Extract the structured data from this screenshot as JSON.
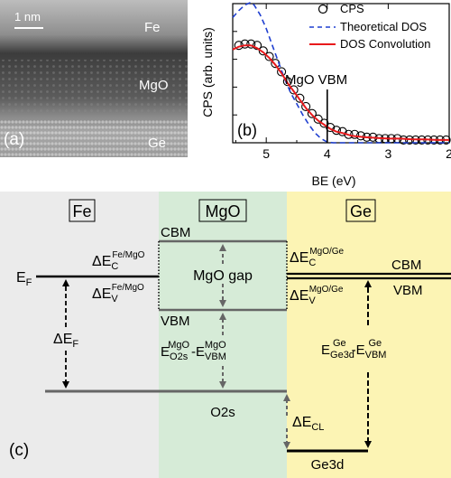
{
  "panel_a": {
    "scale_bar": "1 nm",
    "label_fe": "Fe",
    "label_mgo": "MgO",
    "label_ge": "Ge",
    "panel_tag": "(a)"
  },
  "chart_data": {
    "type": "line",
    "panel_tag": "(b)",
    "xlabel": "BE (eV)",
    "ylabel": "CPS (arb. units)",
    "xlim": [
      5.55,
      2.0
    ],
    "x_reversed": true,
    "xticks": [
      "5",
      "4",
      "3",
      "2"
    ],
    "annotation": "MgO VBM",
    "annotation_x": 4.0,
    "legend_position": "top-right",
    "grid": false,
    "series": [
      {
        "name": "CPS",
        "style": "open-circles",
        "x": [
          5.45,
          5.35,
          5.25,
          5.15,
          5.05,
          4.95,
          4.85,
          4.75,
          4.65,
          4.55,
          4.45,
          4.35,
          4.25,
          4.15,
          4.05,
          3.95,
          3.85,
          3.75,
          3.65,
          3.55,
          3.45,
          3.35,
          3.25,
          3.15,
          3.05,
          2.95,
          2.85,
          2.75,
          2.65,
          2.55,
          2.45,
          2.35,
          2.25,
          2.15,
          2.05
        ],
        "y": [
          0.7,
          0.71,
          0.71,
          0.7,
          0.66,
          0.62,
          0.57,
          0.51,
          0.44,
          0.38,
          0.32,
          0.26,
          0.21,
          0.17,
          0.14,
          0.11,
          0.09,
          0.08,
          0.06,
          0.06,
          0.05,
          0.04,
          0.04,
          0.03,
          0.03,
          0.03,
          0.03,
          0.02,
          0.02,
          0.02,
          0.02,
          0.02,
          0.02,
          0.02,
          0.02
        ]
      },
      {
        "name": "Theoretical DOS",
        "style": "dashed",
        "color": "#1f3fd0",
        "x": [
          5.55,
          5.45,
          5.35,
          5.25,
          5.2,
          5.1,
          5.0,
          4.9,
          4.8,
          4.7,
          4.6,
          4.5,
          4.4,
          4.3,
          4.2,
          4.1,
          4.0,
          3.9,
          3.5,
          3.0,
          2.0
        ],
        "y": [
          0.9,
          0.95,
          0.99,
          1.01,
          0.99,
          0.92,
          0.82,
          0.7,
          0.58,
          0.46,
          0.36,
          0.28,
          0.2,
          0.13,
          0.07,
          0.03,
          0.005,
          0.0,
          0.0,
          0.0,
          0.0
        ]
      },
      {
        "name": "DOS Convolution",
        "style": "solid",
        "color": "#e8191c",
        "x": [
          5.55,
          5.45,
          5.35,
          5.25,
          5.15,
          5.05,
          4.95,
          4.85,
          4.75,
          4.65,
          4.55,
          4.45,
          4.35,
          4.25,
          4.15,
          4.05,
          3.95,
          3.85,
          3.75,
          3.6,
          3.4,
          3.2,
          3.0,
          2.8,
          2.6,
          2.4,
          2.2,
          2.0
        ],
        "y": [
          0.67,
          0.69,
          0.7,
          0.7,
          0.68,
          0.65,
          0.61,
          0.56,
          0.5,
          0.43,
          0.37,
          0.31,
          0.25,
          0.2,
          0.16,
          0.13,
          0.1,
          0.08,
          0.07,
          0.05,
          0.04,
          0.035,
          0.03,
          0.03,
          0.025,
          0.025,
          0.02,
          0.02
        ]
      }
    ]
  },
  "panel_c": {
    "panel_tag": "(c)",
    "header_fe": "Fe",
    "header_mgo": "MgO",
    "header_ge": "Ge",
    "fe_region_color": "#ebebeb",
    "mgo_region_color": "#d6ebd7",
    "ge_region_color": "#fcf4b4",
    "mgo_cbm": "CBM",
    "mgo_vbm": "VBM",
    "mgo_gap": "MgO gap",
    "o2s": "O2s",
    "ge_cbm": "CBM",
    "ge_vbm": "VBM",
    "ge3d": "Ge3d",
    "ef": {
      "base": "E",
      "sub": "F"
    },
    "delta_ef": {
      "base": "ΔE",
      "sub": "F"
    },
    "delta_ec_fe": {
      "base": "ΔE",
      "sub": "C",
      "sup": "Fe/MgO"
    },
    "delta_ev_fe": {
      "base": "ΔE",
      "sub": "V",
      "sup": "Fe/MgO"
    },
    "delta_ec_ge": {
      "base": "ΔE",
      "sub": "C",
      "sup": "MgO/Ge"
    },
    "delta_ev_ge": {
      "base": "ΔE",
      "sub": "V",
      "sup": "MgO/Ge"
    },
    "delta_ecl": {
      "base": "ΔE",
      "sub": "CL"
    },
    "mgo_core_term1": {
      "base": "E",
      "sub": "O2s",
      "sup": "MgO"
    },
    "mgo_core_term2": {
      "base": "-E",
      "sub": "VBM",
      "sup": "MgO"
    },
    "ge_core_term1": {
      "base": "E",
      "sub": "Ge3d",
      "sup": "Ge"
    },
    "ge_core_term2": {
      "base": "-E",
      "sub": "VBM",
      "sup": "Ge"
    }
  }
}
